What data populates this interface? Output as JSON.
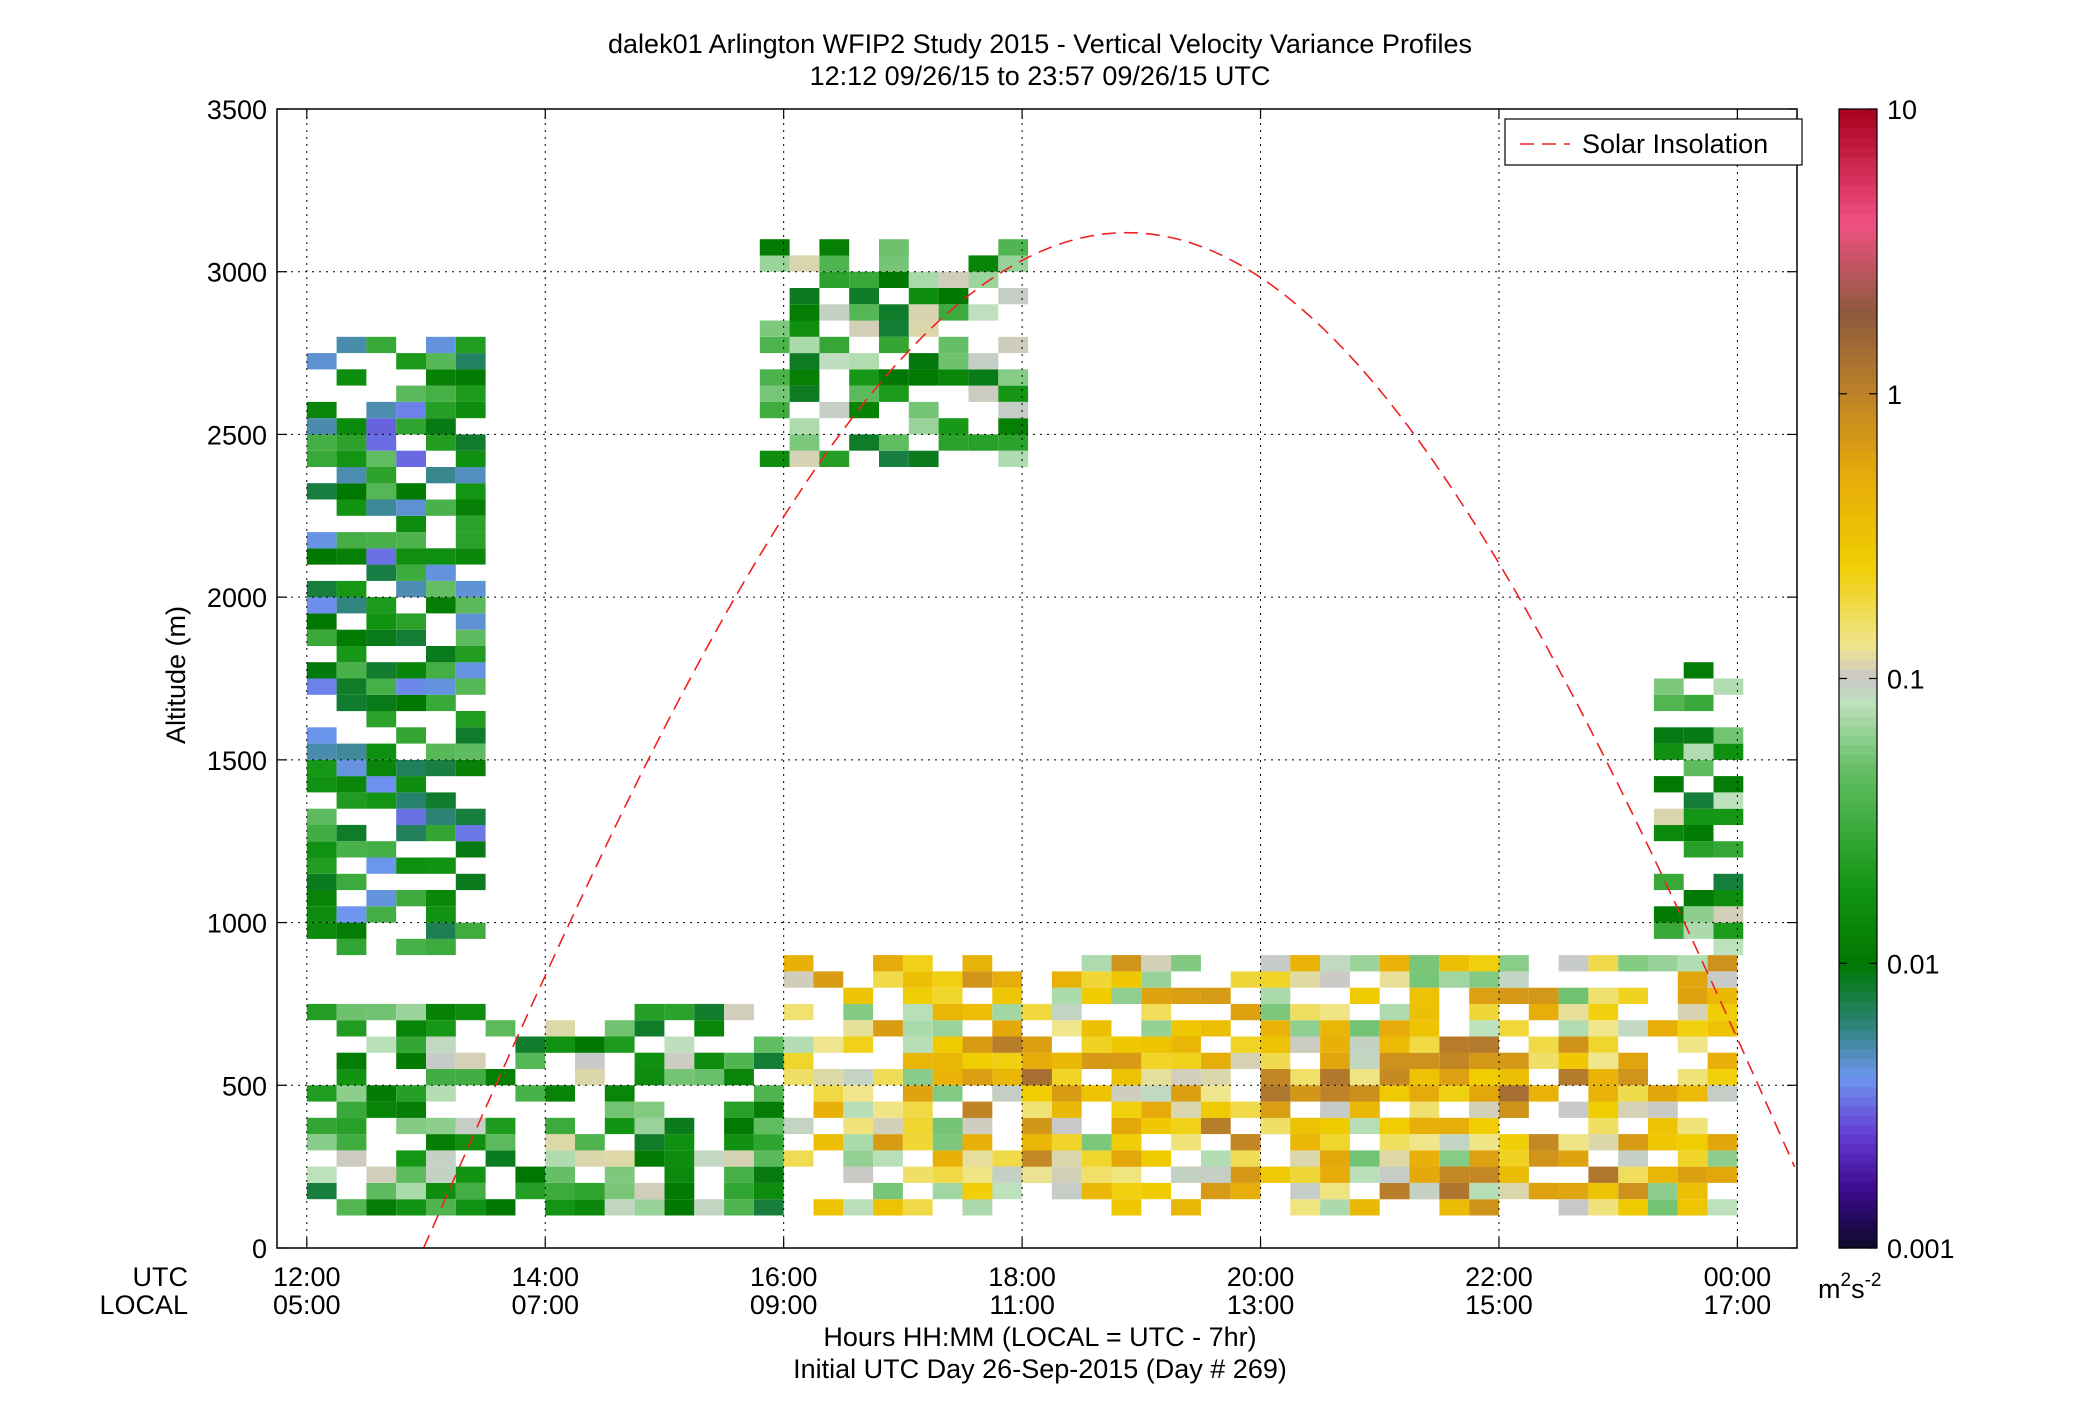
{
  "chart_data": {
    "type": "heatmap",
    "title": "dalek01 Arlington WFIP2 Study 2015 - Vertical Velocity Variance Profiles",
    "subtitle": "12:12 09/26/15 to 23:57 09/26/15  UTC",
    "ylabel": "Altitude (m)",
    "xlabel": "Hours HH:MM  (LOCAL = UTC - 7hr)",
    "xlabel2": "Initial UTC Day 26-Sep-2015 (Day # 269)",
    "row_label_utc": "UTC",
    "row_label_local": "LOCAL",
    "xlim": [
      11.75,
      24.5
    ],
    "ylim": [
      0,
      3500
    ],
    "x_ticks_utc": [
      "12:00",
      "14:00",
      "16:00",
      "18:00",
      "20:00",
      "22:00",
      "00:00"
    ],
    "x_ticks_local": [
      "05:00",
      "07:00",
      "09:00",
      "11:00",
      "13:00",
      "15:00",
      "17:00"
    ],
    "x_tick_values": [
      12,
      14,
      16,
      18,
      20,
      22,
      24
    ],
    "y_ticks": [
      0,
      500,
      1000,
      1500,
      2000,
      2500,
      3000,
      3500
    ],
    "grid": true,
    "legend_entry": "Solar Insolation",
    "legend_position": "top-right",
    "solar_insolation": {
      "start_hour": 12.98,
      "peak_hour": 18.88,
      "end_hour": 24.78,
      "peak_altitude": 3120,
      "color": "#ee2222"
    },
    "colorbar": {
      "scale": "log",
      "min": 0.001,
      "max": 10,
      "unit_text": "m",
      "unit_exp": "2",
      "unit_text2": "s",
      "unit_exp2": "-2",
      "tick_labels": [
        "0.001",
        "0.01",
        "0.1",
        "1",
        "10"
      ],
      "tick_values": [
        0.001,
        0.01,
        0.1,
        1,
        10
      ]
    },
    "grid_cell": {
      "time_step_hours": 0.25,
      "altitude_step_m": 50
    },
    "regions": [
      {
        "name": "morning-column",
        "x_range": [
          12.0,
          13.3
        ],
        "y_range": [
          900,
          2800
        ],
        "typical_value": 0.012,
        "description": "green/blue variance 0.003-0.03"
      },
      {
        "name": "morning-lower",
        "x_range": [
          12.0,
          15.8
        ],
        "y_range": [
          100,
          750
        ],
        "typical_value": 0.03
      },
      {
        "name": "midday-upper",
        "x_range": [
          15.8,
          18.0
        ],
        "y_range": [
          2400,
          3100
        ],
        "typical_value": 0.03
      },
      {
        "name": "afternoon-boundary-layer",
        "x_range": [
          16.0,
          24.0
        ],
        "y_range": [
          100,
          900
        ],
        "typical_value": 0.2
      },
      {
        "name": "afternoon-core",
        "x_range": [
          17.5,
          23.0
        ],
        "y_range": [
          150,
          650
        ],
        "typical_value": 0.35
      },
      {
        "name": "evening-column",
        "x_range": [
          23.3,
          24.0
        ],
        "y_range": [
          900,
          1850
        ],
        "typical_value": 0.03
      }
    ]
  }
}
